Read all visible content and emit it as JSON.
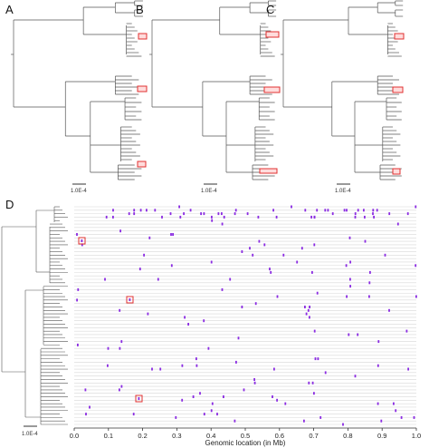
{
  "panels": {
    "a": {
      "label": "A",
      "scale_label": "1.0E-4"
    },
    "b": {
      "label": "B",
      "scale_label": "1.0E-4"
    },
    "c": {
      "label": "C",
      "scale_label": "1.0E-4"
    },
    "d": {
      "label": "D",
      "scale_label": "1.0E-4"
    }
  },
  "axis": {
    "title": "Genomic location (in Mb)",
    "ticks": [
      "0.0",
      "0.1",
      "0.2",
      "0.3",
      "0.4",
      "0.5",
      "0.6",
      "0.7",
      "0.8",
      "0.9",
      "1.0"
    ],
    "range": [
      0.0,
      1.0
    ]
  },
  "colors": {
    "tree": "#555555",
    "highlight": "#e03030",
    "snp": "#8a2be2",
    "track": "#d8d8d8"
  }
}
